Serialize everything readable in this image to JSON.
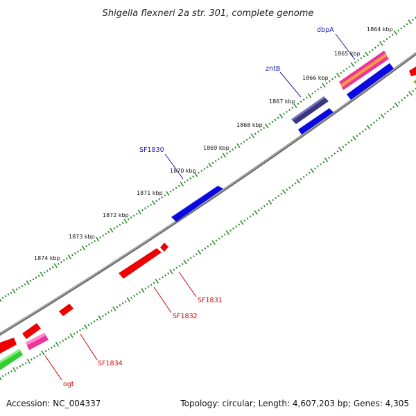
{
  "title": "Shigella flexneri 2a str. 301, complete genome",
  "footer": {
    "accession": "Accession: NC_004337",
    "summary": "Topology: circular; Length: 4,607,203 bp; Genes: 4,305"
  },
  "ticks": [
    {
      "label": "1864 kbp"
    },
    {
      "label": "1865 kbp"
    },
    {
      "label": "1866 kbp"
    },
    {
      "label": "1867 kbp"
    },
    {
      "label": "1868 kbp"
    },
    {
      "label": "1869 kbp"
    },
    {
      "label": "1870 kbp"
    },
    {
      "label": "1871 kbp"
    },
    {
      "label": "1872 kbp"
    },
    {
      "label": "1873 kbp"
    },
    {
      "label": "1874 kbp"
    }
  ],
  "gene_labels": [
    {
      "name": "dbpA",
      "color": "#1a1aa8"
    },
    {
      "name": "zntB",
      "color": "#1a1aa8"
    },
    {
      "name": "SF1830",
      "color": "#1a1aa8"
    },
    {
      "name": "SF1831",
      "color": "#cc0000"
    },
    {
      "name": "SF1832",
      "color": "#cc0000"
    },
    {
      "name": "SF1834",
      "color": "#cc0000"
    },
    {
      "name": "ogt",
      "color": "#cc0000"
    }
  ],
  "colors": {
    "backbone": "#808080",
    "tick_track": "#2e8b2e",
    "forward_gene": "#0a0aee",
    "reverse_gene": "#ee0000",
    "dark_gene": "#3b3680",
    "pink_gene": "#ee3399",
    "orange_gene": "#f2a040",
    "green_gene": "#33cc33",
    "olive_gene": "#b0a000"
  }
}
